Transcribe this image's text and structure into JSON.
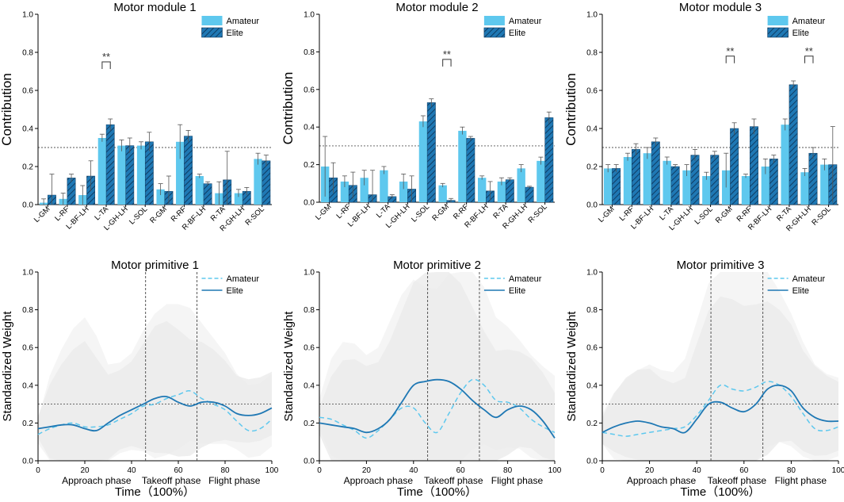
{
  "chart_data": [
    {
      "type": "bar",
      "title": "Motor module 1",
      "ylabel": "Contribution",
      "xlabel": "",
      "ylim": [
        0,
        1.0
      ],
      "yticks": [
        "0.0",
        "0.2",
        "0.4",
        "0.6",
        "0.8",
        "1.0"
      ],
      "reference_line": 0.3,
      "categories": [
        "L-GM",
        "L-RF",
        "L-BF-LH",
        "L-TA",
        "L-GH-LH",
        "L-SOL",
        "R-GM",
        "R-RF",
        "R-BF-LH",
        "R-TA",
        "R-GH-LH",
        "R-SOL"
      ],
      "series": [
        {
          "name": "Amateur",
          "values": [
            0.01,
            0.03,
            0.05,
            0.35,
            0.31,
            0.31,
            0.08,
            0.33,
            0.15,
            0.06,
            0.06,
            0.24
          ],
          "errors": [
            0.02,
            0.03,
            0.05,
            0.02,
            0.03,
            0.02,
            0.03,
            0.09,
            0.01,
            0.06,
            0.02,
            0.03
          ]
        },
        {
          "name": "Elite",
          "values": [
            0.05,
            0.14,
            0.15,
            0.42,
            0.31,
            0.33,
            0.07,
            0.36,
            0.11,
            0.13,
            0.07,
            0.23
          ],
          "errors": [
            0.11,
            0.02,
            0.08,
            0.03,
            0.04,
            0.05,
            0.08,
            0.03,
            0.01,
            0.15,
            0.02,
            0.03
          ]
        }
      ],
      "significance": [
        {
          "index": 3,
          "label": "**"
        }
      ],
      "legend": [
        "Amateur",
        "Elite"
      ]
    },
    {
      "type": "bar",
      "title": "Motor module 2",
      "ylabel": "Contribution",
      "xlabel": "",
      "ylim": [
        0,
        1.0
      ],
      "yticks": [
        "0.0",
        "0.2",
        "0.4",
        "0.6",
        "0.8",
        "1.0"
      ],
      "reference_line": 0.3,
      "categories": [
        "L-GM",
        "L-RF",
        "L-BF-LH",
        "L-TA",
        "L-GH-LH",
        "L-SOL",
        "R-GM",
        "R-RF",
        "R-BF-LH",
        "R-TA",
        "R-GH-LH",
        "R-SOL"
      ],
      "series": [
        {
          "name": "Amateur",
          "values": [
            0.19,
            0.11,
            0.13,
            0.17,
            0.11,
            0.43,
            0.09,
            0.38,
            0.13,
            0.11,
            0.18,
            0.22
          ],
          "errors": [
            0.16,
            0.03,
            0.04,
            0.02,
            0.04,
            0.03,
            0.01,
            0.02,
            0.01,
            0.02,
            0.02,
            0.02
          ]
        },
        {
          "name": "Elite",
          "values": [
            0.13,
            0.09,
            0.04,
            0.03,
            0.07,
            0.53,
            0.01,
            0.34,
            0.06,
            0.12,
            0.08,
            0.45
          ],
          "errors": [
            0.08,
            0.07,
            0.13,
            0.01,
            0.07,
            0.02,
            0.01,
            0.01,
            0.05,
            0.01,
            0.005,
            0.03
          ]
        }
      ],
      "significance": [
        {
          "index": 6,
          "label": "**"
        }
      ],
      "legend": [
        "Amateur",
        "Elite"
      ]
    },
    {
      "type": "bar",
      "title": "Motor module 3",
      "ylabel": "Contribution",
      "xlabel": "",
      "ylim": [
        0,
        1.0
      ],
      "yticks": [
        "0.0",
        "0.2",
        "0.4",
        "0.6",
        "0.8",
        "1.0"
      ],
      "reference_line": 0.3,
      "categories": [
        "L-GM",
        "L-RF",
        "L-BF-LH",
        "L-TA",
        "L-GH-LH",
        "L-SOL",
        "R-GM",
        "R-RF",
        "R-BF-LH",
        "R-TA",
        "R-GH-LH",
        "R-SOL"
      ],
      "series": [
        {
          "name": "Amateur",
          "values": [
            0.19,
            0.25,
            0.27,
            0.23,
            0.18,
            0.15,
            0.18,
            0.15,
            0.2,
            0.42,
            0.17,
            0.21
          ],
          "errors": [
            0.02,
            0.02,
            0.03,
            0.02,
            0.03,
            0.02,
            0.09,
            0.01,
            0.04,
            0.03,
            0.02,
            0.03
          ]
        },
        {
          "name": "Elite",
          "values": [
            0.19,
            0.29,
            0.33,
            0.2,
            0.26,
            0.26,
            0.4,
            0.41,
            0.24,
            0.63,
            0.27,
            0.21
          ],
          "errors": [
            0.02,
            0.03,
            0.02,
            0.01,
            0.03,
            0.02,
            0.03,
            0.04,
            0.02,
            0.02,
            0.03,
            0.2
          ]
        }
      ],
      "significance": [
        {
          "index": 6,
          "label": "**"
        },
        {
          "index": 10,
          "label": "**"
        }
      ],
      "legend": [
        "Amateur",
        "Elite"
      ]
    },
    {
      "type": "line",
      "title": "Motor primitive 1",
      "ylabel": "Standardized Weight",
      "xlabel": "Time（100%）",
      "xlim": [
        0,
        100
      ],
      "ylim": [
        0,
        1.0
      ],
      "xticks": [
        "0",
        "20",
        "40",
        "60",
        "80",
        "100"
      ],
      "yticks": [
        "0.0",
        "0.2",
        "0.4",
        "0.6",
        "0.8",
        "1.0"
      ],
      "reference_line": 0.3,
      "phase_boundaries": [
        46,
        68
      ],
      "phase_labels": [
        "Approach phase",
        "Takeoff phase",
        "Flight phase"
      ],
      "x": [
        0,
        5,
        10,
        15,
        20,
        25,
        30,
        35,
        40,
        45,
        50,
        55,
        60,
        65,
        70,
        75,
        80,
        85,
        90,
        95,
        100
      ],
      "series": [
        {
          "name": "Amateur",
          "style": "dashed",
          "values": [
            0.14,
            0.17,
            0.19,
            0.2,
            0.18,
            0.18,
            0.19,
            0.22,
            0.25,
            0.29,
            0.3,
            0.33,
            0.35,
            0.37,
            0.33,
            0.3,
            0.27,
            0.21,
            0.16,
            0.17,
            0.22
          ],
          "band": [
            0.08,
            0.28,
            0.4,
            0.5,
            0.58,
            0.48,
            0.32,
            0.3,
            0.32,
            0.4,
            0.48,
            0.5,
            0.48,
            0.44,
            0.4,
            0.35,
            0.3,
            0.25,
            0.24,
            0.24,
            0.24
          ]
        },
        {
          "name": "Elite",
          "style": "solid",
          "values": [
            0.17,
            0.18,
            0.19,
            0.19,
            0.17,
            0.16,
            0.2,
            0.24,
            0.27,
            0.3,
            0.33,
            0.34,
            0.31,
            0.29,
            0.31,
            0.31,
            0.29,
            0.25,
            0.24,
            0.25,
            0.28
          ],
          "band": [
            0.08,
            0.28,
            0.4,
            0.5,
            0.58,
            0.48,
            0.32,
            0.3,
            0.32,
            0.4,
            0.48,
            0.5,
            0.48,
            0.44,
            0.4,
            0.35,
            0.3,
            0.25,
            0.24,
            0.24,
            0.24
          ]
        }
      ],
      "legend": [
        "Amateur",
        "Elite"
      ]
    },
    {
      "type": "line",
      "title": "Motor primitive 2",
      "ylabel": "Standardized Weight",
      "xlabel": "Time（100%）",
      "xlim": [
        0,
        100
      ],
      "ylim": [
        0,
        1.0
      ],
      "xticks": [
        "0",
        "20",
        "40",
        "60",
        "80",
        "100"
      ],
      "yticks": [
        "0.0",
        "0.2",
        "0.4",
        "0.6",
        "0.8",
        "1.0"
      ],
      "reference_line": 0.3,
      "phase_boundaries": [
        46,
        68
      ],
      "phase_labels": [
        "Approach phase",
        "Takeoff phase",
        "Flight phase"
      ],
      "x": [
        0,
        5,
        10,
        15,
        20,
        25,
        30,
        35,
        40,
        45,
        50,
        55,
        60,
        65,
        70,
        75,
        80,
        85,
        90,
        95,
        100
      ],
      "series": [
        {
          "name": "Amateur",
          "style": "dashed",
          "values": [
            0.23,
            0.22,
            0.19,
            0.16,
            0.12,
            0.16,
            0.22,
            0.28,
            0.28,
            0.2,
            0.15,
            0.25,
            0.36,
            0.43,
            0.4,
            0.32,
            0.31,
            0.28,
            0.22,
            0.18,
            0.15
          ],
          "band": [
            0.1,
            0.32,
            0.44,
            0.46,
            0.44,
            0.44,
            0.52,
            0.6,
            0.68,
            0.72,
            0.76,
            0.74,
            0.7,
            0.62,
            0.52,
            0.44,
            0.4,
            0.36,
            0.34,
            0.32,
            0.3
          ]
        },
        {
          "name": "Elite",
          "style": "solid",
          "values": [
            0.2,
            0.19,
            0.18,
            0.17,
            0.15,
            0.17,
            0.22,
            0.31,
            0.4,
            0.42,
            0.43,
            0.42,
            0.38,
            0.32,
            0.27,
            0.23,
            0.27,
            0.29,
            0.27,
            0.21,
            0.12
          ],
          "band": [
            0.1,
            0.32,
            0.44,
            0.46,
            0.44,
            0.44,
            0.52,
            0.6,
            0.68,
            0.72,
            0.76,
            0.74,
            0.7,
            0.62,
            0.52,
            0.44,
            0.4,
            0.36,
            0.34,
            0.32,
            0.3
          ]
        }
      ],
      "legend": [
        "Amateur",
        "Elite"
      ]
    },
    {
      "type": "line",
      "title": "Motor primitive 3",
      "ylabel": "Standardized Weight",
      "xlabel": "Time（100%）",
      "xlim": [
        0,
        100
      ],
      "ylim": [
        0,
        1.0
      ],
      "xticks": [
        "0",
        "20",
        "40",
        "60",
        "80",
        "100"
      ],
      "yticks": [
        "0.0",
        "0.2",
        "0.4",
        "0.6",
        "0.8",
        "1.0"
      ],
      "reference_line": 0.3,
      "phase_boundaries": [
        46,
        68
      ],
      "phase_labels": [
        "Approach phase",
        "Takeoff phase",
        "Flight phase"
      ],
      "x": [
        0,
        5,
        10,
        15,
        20,
        25,
        30,
        35,
        40,
        45,
        50,
        55,
        60,
        65,
        70,
        75,
        80,
        85,
        90,
        95,
        100
      ],
      "series": [
        {
          "name": "Amateur",
          "style": "dashed",
          "values": [
            0.15,
            0.14,
            0.13,
            0.14,
            0.15,
            0.16,
            0.17,
            0.18,
            0.24,
            0.32,
            0.4,
            0.38,
            0.37,
            0.39,
            0.42,
            0.4,
            0.34,
            0.25,
            0.17,
            0.16,
            0.18
          ],
          "band": [
            0.1,
            0.22,
            0.3,
            0.34,
            0.36,
            0.32,
            0.3,
            0.36,
            0.5,
            0.62,
            0.7,
            0.72,
            0.7,
            0.66,
            0.58,
            0.5,
            0.44,
            0.38,
            0.34,
            0.3,
            0.26
          ]
        },
        {
          "name": "Elite",
          "style": "solid",
          "values": [
            0.15,
            0.18,
            0.2,
            0.21,
            0.2,
            0.18,
            0.17,
            0.15,
            0.22,
            0.3,
            0.31,
            0.28,
            0.26,
            0.3,
            0.38,
            0.4,
            0.37,
            0.28,
            0.23,
            0.21,
            0.21
          ],
          "band": [
            0.1,
            0.22,
            0.3,
            0.34,
            0.36,
            0.32,
            0.3,
            0.36,
            0.5,
            0.62,
            0.7,
            0.72,
            0.7,
            0.66,
            0.58,
            0.5,
            0.44,
            0.38,
            0.34,
            0.3,
            0.26
          ]
        }
      ],
      "legend": [
        "Amateur",
        "Elite"
      ]
    }
  ],
  "colors": {
    "amateur": "#5ec8ee",
    "elite": "#1f78b4",
    "elite_hatch": "#0f3d63",
    "band": "#eeeeee",
    "axis": "#000000",
    "reference": "#555555"
  }
}
